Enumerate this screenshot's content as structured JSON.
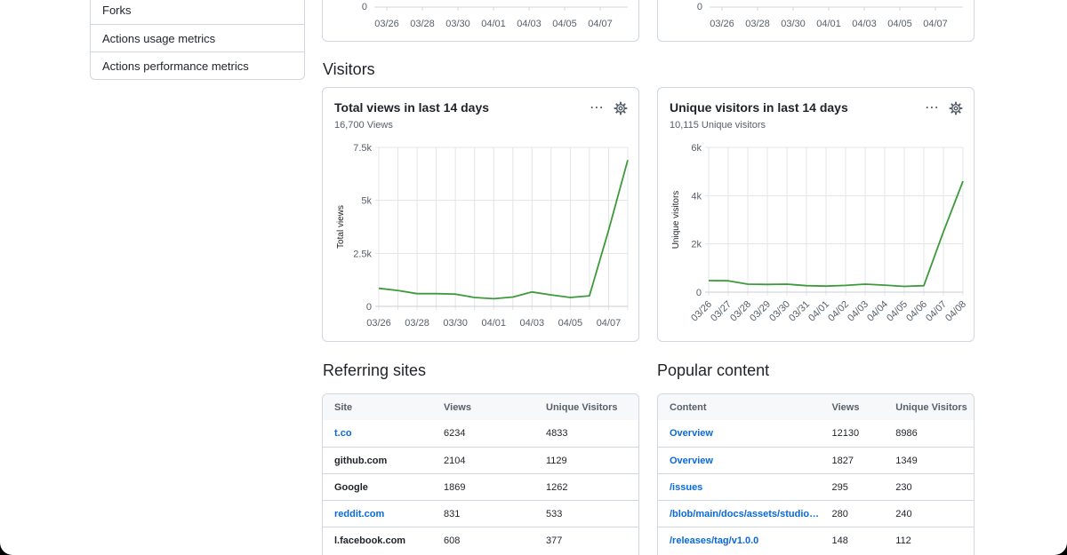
{
  "sidebar": {
    "items": [
      {
        "label": "Forks"
      },
      {
        "label": "Actions usage metrics"
      },
      {
        "label": "Actions performance metrics"
      }
    ]
  },
  "top_charts": {
    "left_ticks": [
      "03/26",
      "03/28",
      "03/30",
      "04/01",
      "04/03",
      "04/05",
      "04/07"
    ],
    "right_ticks": [
      "03/26",
      "03/28",
      "03/30",
      "04/01",
      "04/03",
      "04/05",
      "04/07"
    ],
    "zero": "0"
  },
  "visitors": {
    "section_title": "Visitors"
  },
  "views_chart": {
    "title": "Total views in last 14 days",
    "subtitle": "16,700 Views",
    "icons": [
      "kebab-icon",
      "gear-icon"
    ]
  },
  "visitors_chart": {
    "title": "Unique visitors in last 14 days",
    "subtitle": "10,115 Unique visitors",
    "icons": [
      "kebab-icon",
      "gear-icon"
    ]
  },
  "chart_data": [
    {
      "type": "line",
      "title": "Total views in last 14 days",
      "ylabel": "Total views",
      "ylim": [
        0,
        7500
      ],
      "yticks": [
        "0",
        "2.5k",
        "5k",
        "7.5k"
      ],
      "xticks": [
        "03/26",
        "03/28",
        "03/30",
        "04/01",
        "04/03",
        "04/05",
        "04/07"
      ],
      "x": [
        "03/26",
        "03/27",
        "03/28",
        "03/29",
        "03/30",
        "03/31",
        "04/01",
        "04/02",
        "04/03",
        "04/04",
        "04/05",
        "04/06",
        "04/07",
        "04/08"
      ],
      "values": [
        850,
        750,
        600,
        600,
        580,
        420,
        360,
        440,
        680,
        540,
        420,
        500,
        3600,
        6900
      ],
      "color": "#3c9a3c",
      "grid": true
    },
    {
      "type": "line",
      "title": "Unique visitors in last 14 days",
      "ylabel": "Unique visitors",
      "ylim": [
        0,
        6000
      ],
      "yticks": [
        "0",
        "2k",
        "4k",
        "6k"
      ],
      "xticks": [
        "03/26",
        "03/27",
        "03/28",
        "03/29",
        "03/30",
        "03/31",
        "04/01",
        "04/02",
        "04/03",
        "04/04",
        "04/05",
        "04/06",
        "04/07",
        "04/08"
      ],
      "x": [
        "03/26",
        "03/27",
        "03/28",
        "03/29",
        "03/30",
        "03/31",
        "04/01",
        "04/02",
        "04/03",
        "04/04",
        "04/05",
        "04/06",
        "04/07",
        "04/08"
      ],
      "values": [
        480,
        470,
        330,
        320,
        330,
        270,
        250,
        280,
        330,
        290,
        240,
        270,
        2500,
        4600
      ],
      "color": "#3c9a3c",
      "grid": true
    }
  ],
  "referring": {
    "section_title": "Referring sites",
    "headers": [
      "Site",
      "Views",
      "Unique Visitors"
    ],
    "rows": [
      {
        "site": "t.co",
        "views": "6234",
        "unique": "4833",
        "link": true
      },
      {
        "site": "github.com",
        "views": "2104",
        "unique": "1129",
        "link": false
      },
      {
        "site": "Google",
        "views": "1869",
        "unique": "1262",
        "link": false
      },
      {
        "site": "reddit.com",
        "views": "831",
        "unique": "533",
        "link": true
      },
      {
        "site": "l.facebook.com",
        "views": "608",
        "unique": "377",
        "link": false
      }
    ]
  },
  "popular": {
    "section_title": "Popular content",
    "headers": [
      "Content",
      "Views",
      "Unique Visitors"
    ],
    "rows": [
      {
        "content": "Overview",
        "views": "12130",
        "unique": "8986"
      },
      {
        "content": "Overview",
        "views": "1827",
        "unique": "1349"
      },
      {
        "content": "/issues",
        "views": "295",
        "unique": "230"
      },
      {
        "content": "/blob/main/docs/assets/studio_...",
        "views": "280",
        "unique": "240"
      },
      {
        "content": "/releases/tag/v1.0.0",
        "views": "148",
        "unique": "112"
      }
    ]
  }
}
